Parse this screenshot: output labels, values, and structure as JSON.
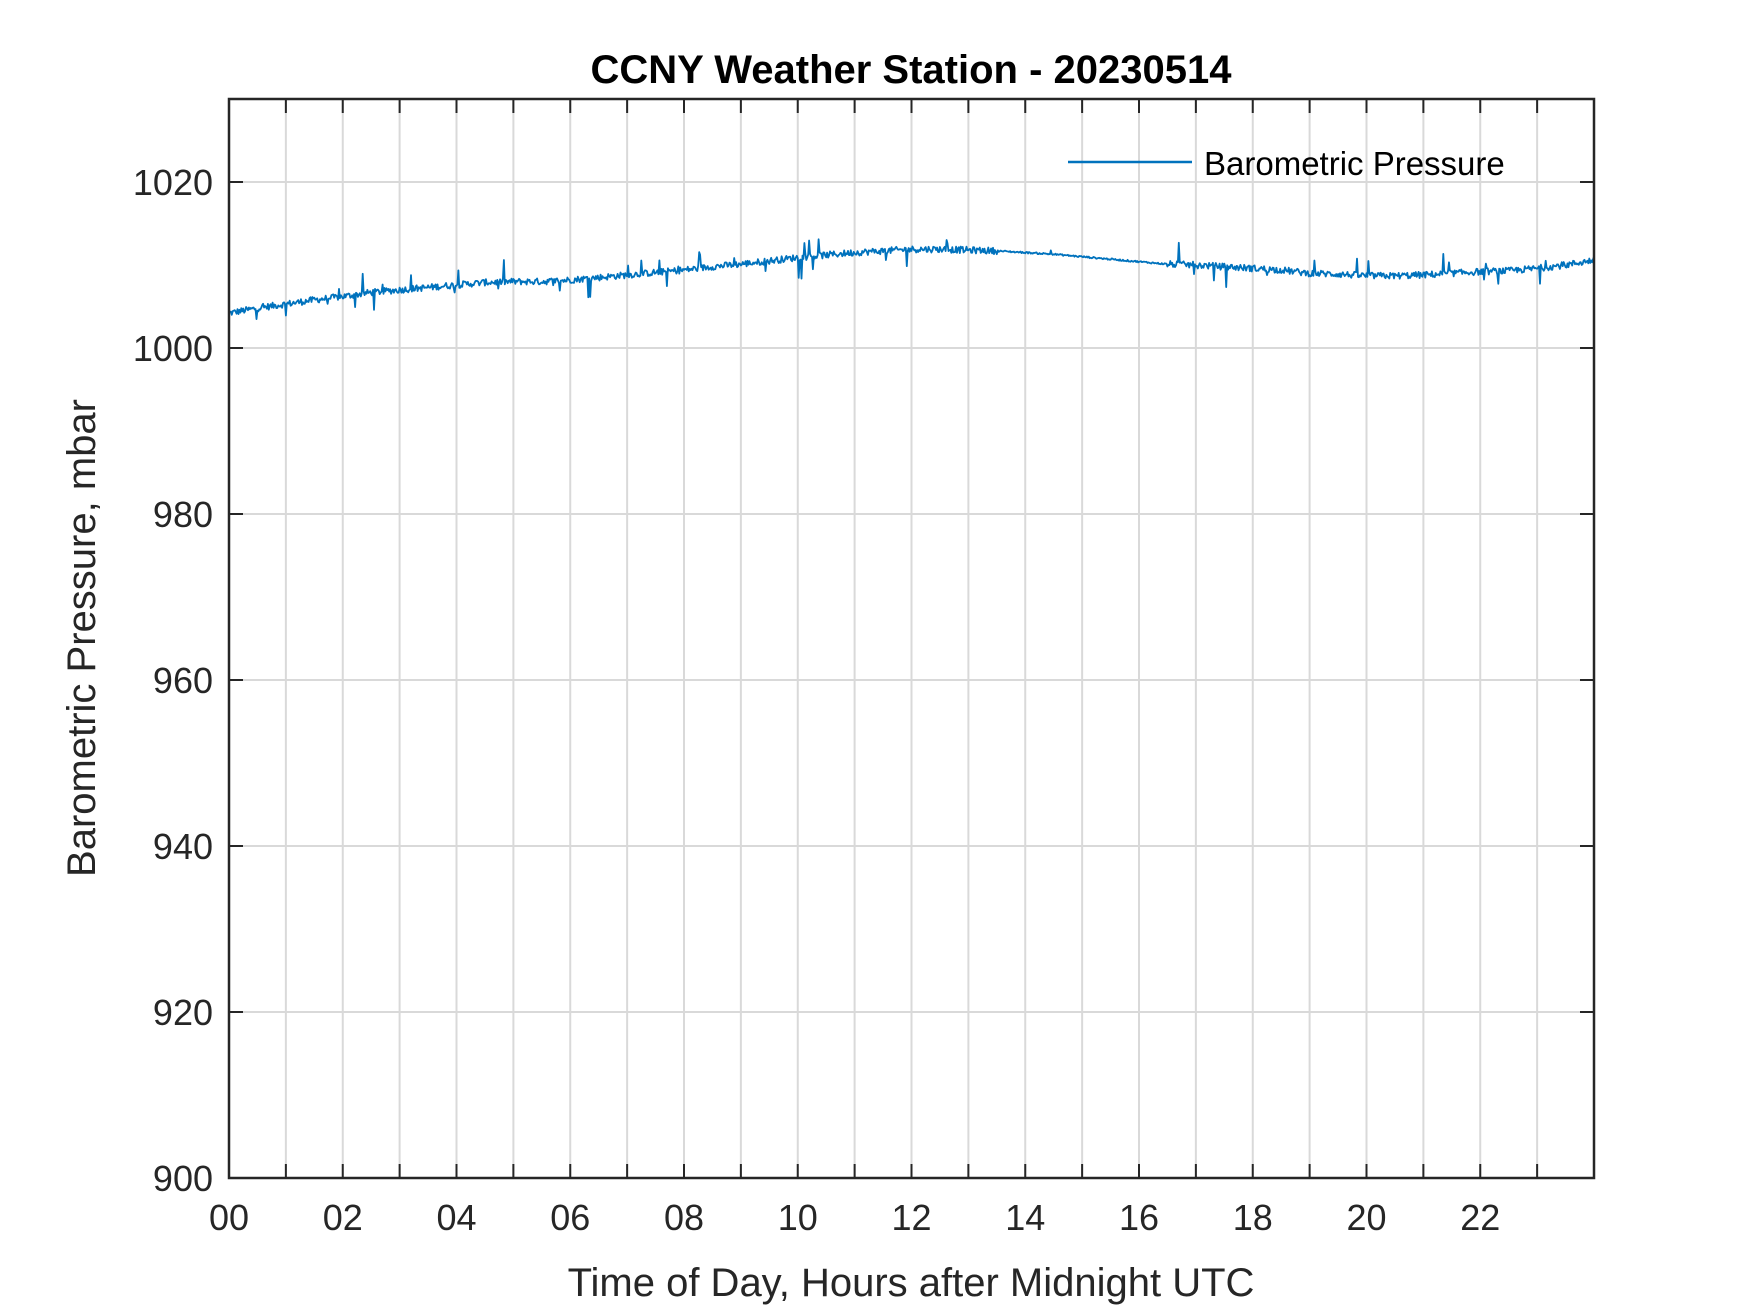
{
  "chart_data": {
    "type": "line",
    "title": "CCNY Weather Station - 20230514",
    "xlabel": "Time of Day, Hours after Midnight UTC",
    "ylabel": "Barometric Pressure, mbar",
    "xlim": [
      0,
      24
    ],
    "ylim": [
      900,
      1030
    ],
    "x_ticks": [
      0,
      2,
      4,
      6,
      8,
      10,
      12,
      14,
      16,
      18,
      20,
      22
    ],
    "x_tick_labels": [
      "00",
      "02",
      "04",
      "06",
      "08",
      "10",
      "12",
      "14",
      "16",
      "18",
      "20",
      "22"
    ],
    "x_minor_ticks": [
      1,
      3,
      5,
      7,
      9,
      11,
      13,
      15,
      17,
      19,
      21,
      23
    ],
    "y_ticks": [
      900,
      920,
      940,
      960,
      980,
      1000,
      1020
    ],
    "y_tick_labels": [
      "900",
      "920",
      "940",
      "960",
      "980",
      "1000",
      "1020"
    ],
    "grid": true,
    "legend_position": "top-right",
    "series": [
      {
        "name": "Barometric Pressure",
        "color": "#0072BD",
        "x": [
          0,
          0.5,
          1,
          1.5,
          2,
          2.5,
          3,
          3.5,
          4,
          4.5,
          5,
          5.5,
          6,
          6.5,
          7,
          7.5,
          8,
          8.5,
          9,
          9.5,
          10,
          10.5,
          11,
          11.5,
          12,
          12.5,
          13,
          13.5,
          14,
          14.5,
          15,
          15.5,
          16,
          16.5,
          17,
          17.5,
          18,
          18.5,
          19,
          19.5,
          20,
          20.5,
          21,
          21.5,
          22,
          22.5,
          23,
          23.5,
          24
        ],
        "y": [
          1004.2,
          1004.8,
          1005.3,
          1005.8,
          1006.2,
          1006.7,
          1007.0,
          1007.3,
          1007.6,
          1007.9,
          1008.0,
          1008.0,
          1008.2,
          1008.5,
          1008.8,
          1009.1,
          1009.4,
          1009.8,
          1010.1,
          1010.5,
          1010.9,
          1011.2,
          1011.5,
          1011.7,
          1011.9,
          1011.9,
          1011.8,
          1011.7,
          1011.5,
          1011.3,
          1011.0,
          1010.7,
          1010.4,
          1010.1,
          1010.0,
          1009.8,
          1009.6,
          1009.4,
          1009.0,
          1008.9,
          1008.7,
          1008.7,
          1008.8,
          1009.0,
          1009.2,
          1009.3,
          1009.6,
          1010.0,
          1010.6
        ]
      }
    ]
  }
}
